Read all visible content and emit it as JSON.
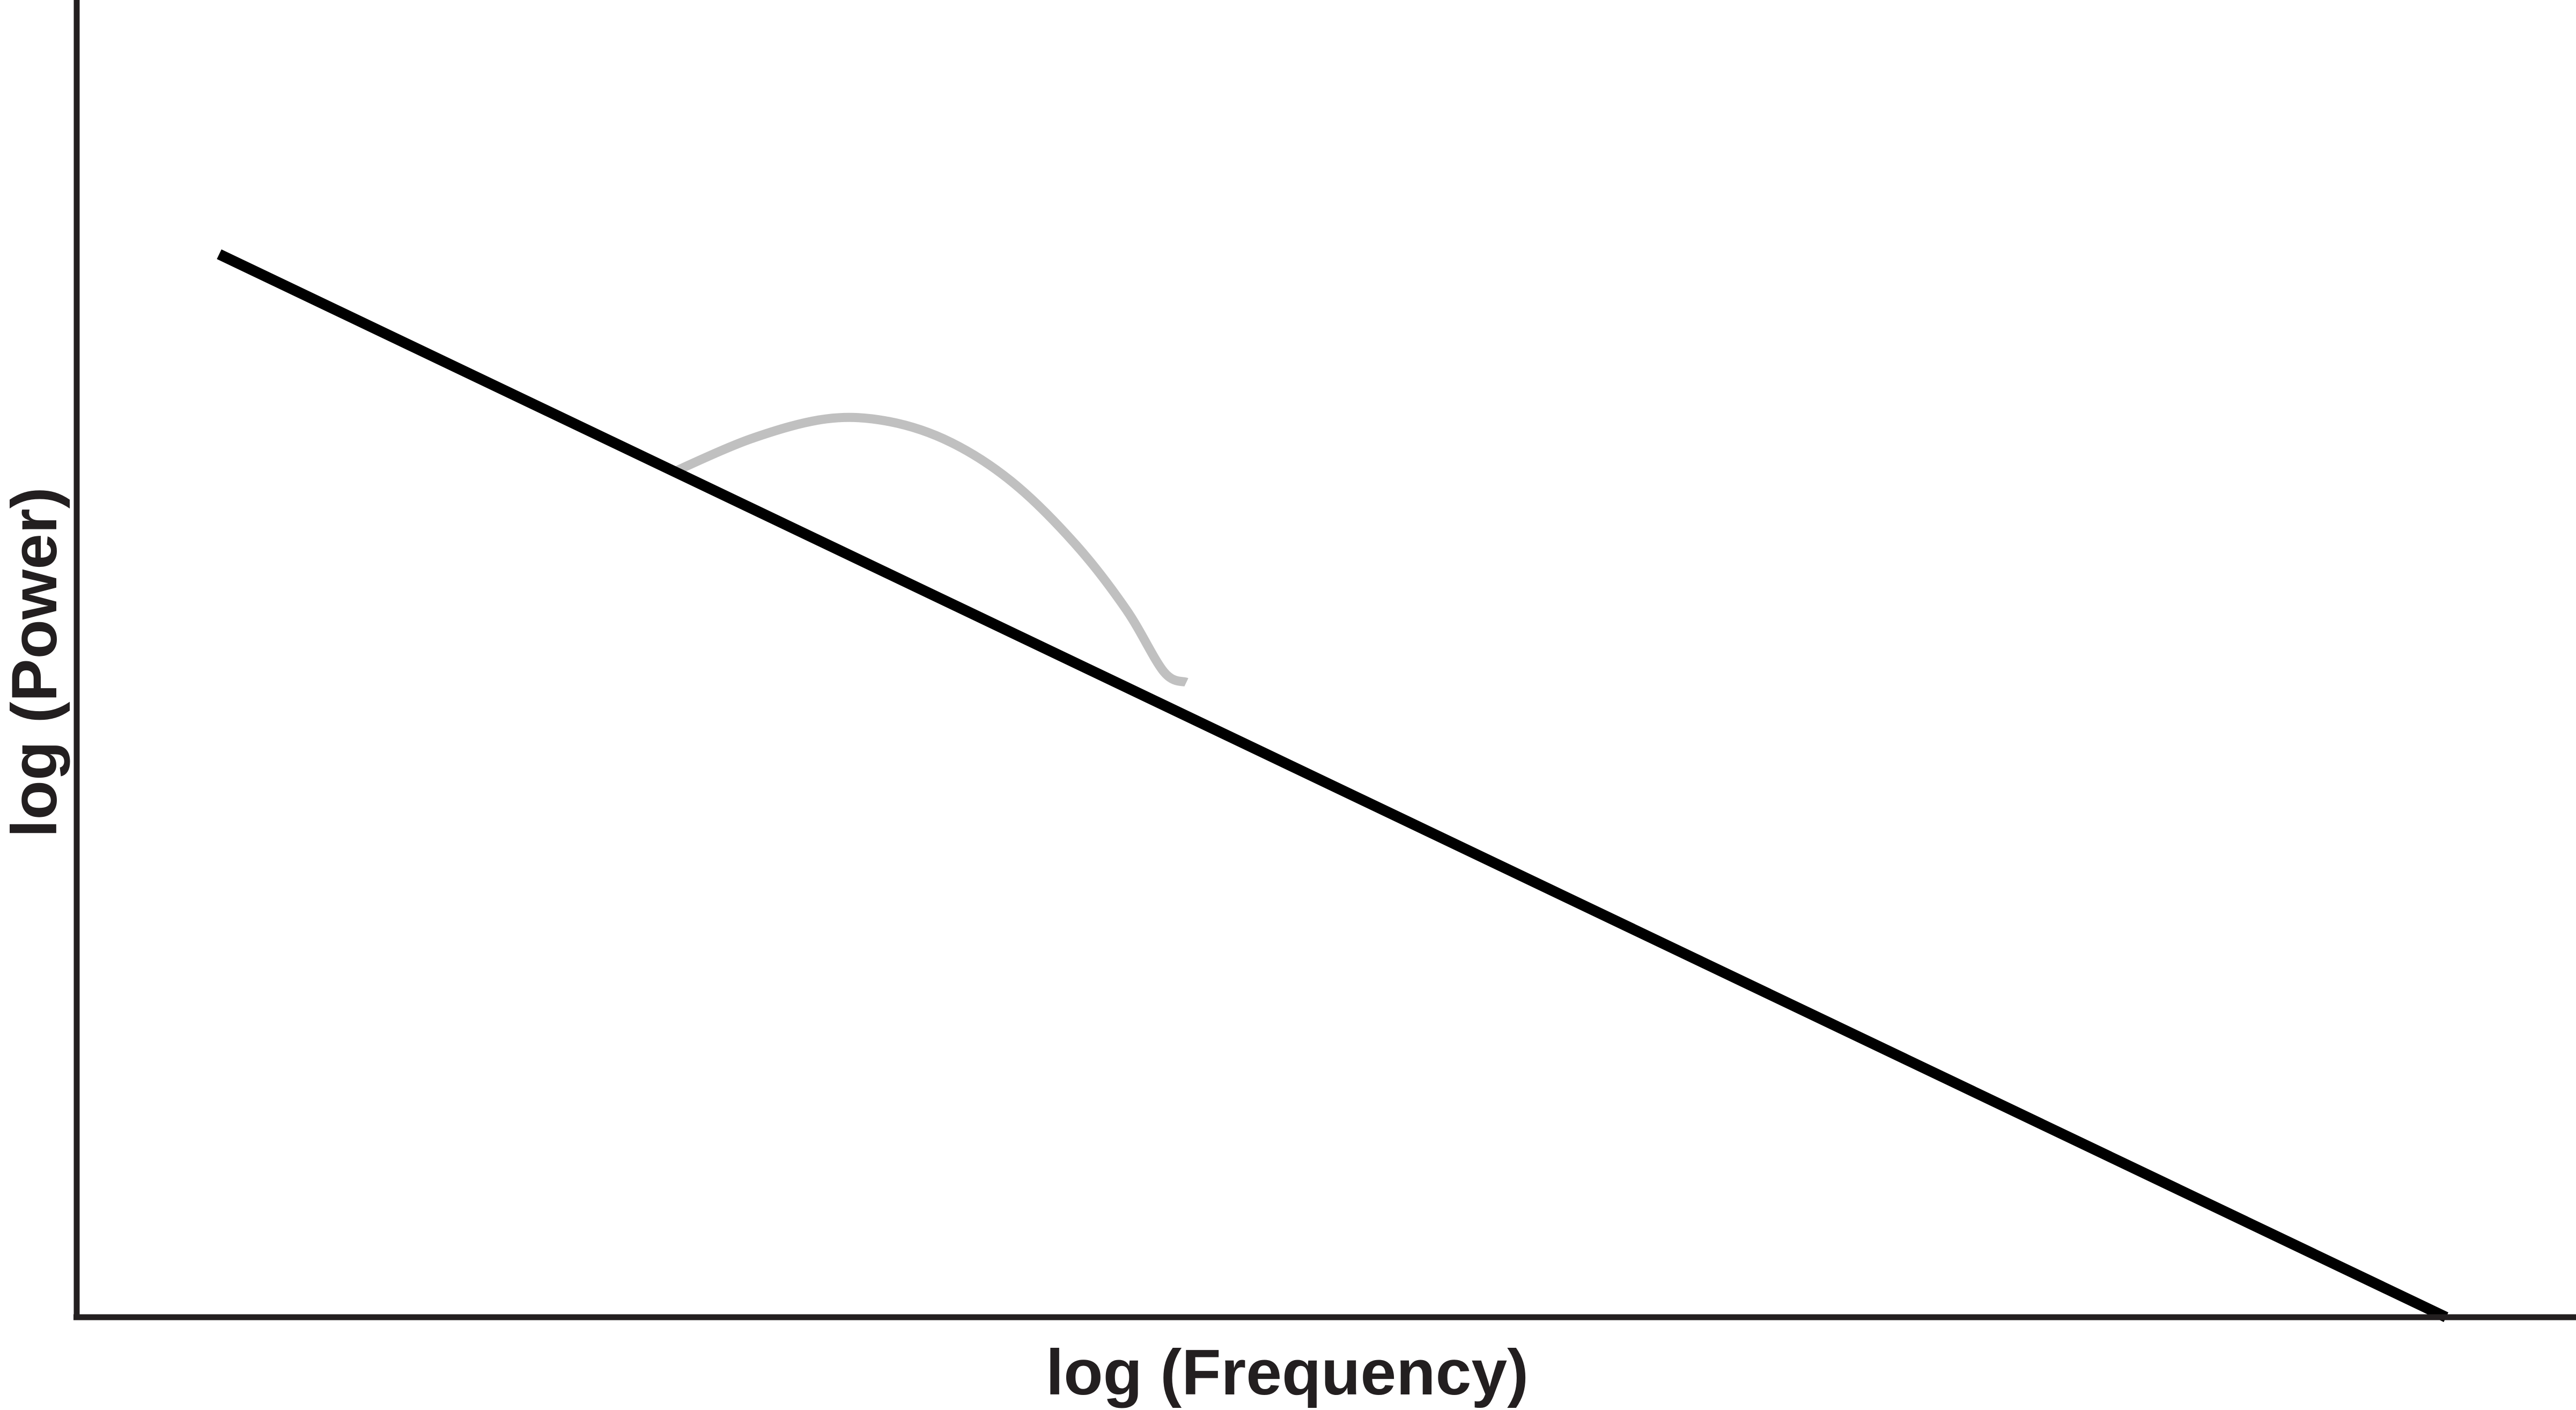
{
  "chart_data": {
    "type": "line",
    "title": "",
    "xlabel": "log (Frequency)",
    "ylabel": "log (Power)",
    "xlim": [
      0,
      100
    ],
    "ylim": [
      0,
      100
    ],
    "grid": false,
    "ticks": "none",
    "series": [
      {
        "role": "aperiodic",
        "color": "#000000",
        "x": [
          5.7,
          94.8
        ],
        "y": [
          80.7,
          0.0
        ]
      },
      {
        "role": "periodic-peak",
        "color": "#c0c0c0",
        "x": [
          23.8,
          27.0,
          30.0,
          32.5,
          35.0,
          37.5,
          40.0,
          42.0,
          43.5,
          44.4
        ],
        "y": [
          64.1,
          66.7,
          68.2,
          68.0,
          66.4,
          63.3,
          58.6,
          53.7,
          49.0,
          48.2
        ]
      }
    ]
  }
}
